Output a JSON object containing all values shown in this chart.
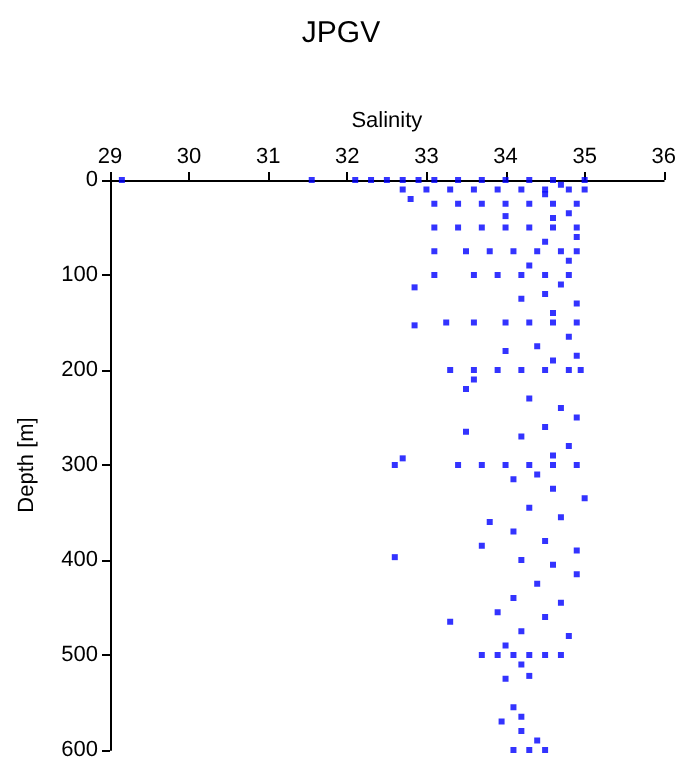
{
  "chart_data": {
    "type": "scatter",
    "title": "JPGV",
    "xlabel": "Salinity",
    "ylabel": "Depth [m]",
    "xlim": [
      29,
      36
    ],
    "xticks": [
      29,
      30,
      31,
      32,
      33,
      34,
      35,
      36
    ],
    "ylim": [
      600,
      0
    ],
    "yticks": [
      0,
      100,
      200,
      300,
      400,
      500,
      600
    ],
    "grid": false,
    "marker": "square",
    "series": [
      {
        "color": "#0000ff",
        "x": [
          29.15,
          31.55,
          32.1,
          32.3,
          32.5,
          32.7,
          32.9,
          33.1,
          33.4,
          33.7,
          34.0,
          34.3,
          34.6,
          35.0,
          32.7,
          33.0,
          33.3,
          33.6,
          33.9,
          34.2,
          34.5,
          34.8,
          35.0,
          33.1,
          33.4,
          33.7,
          34.0,
          34.3,
          34.6,
          34.9,
          33.1,
          33.4,
          33.7,
          34.0,
          34.3,
          34.6,
          34.9,
          33.1,
          33.5,
          33.8,
          34.1,
          34.4,
          34.7,
          34.9,
          33.1,
          33.6,
          33.9,
          34.2,
          34.5,
          34.8,
          33.25,
          33.6,
          34.0,
          34.3,
          34.6,
          34.9,
          33.3,
          33.6,
          33.9,
          34.2,
          34.5,
          34.8,
          34.95,
          33.4,
          33.7,
          34.0,
          34.3,
          34.6,
          34.9,
          33.7,
          33.9,
          34.1,
          34.3,
          34.5,
          34.7,
          34.7,
          34.5,
          34.8,
          34.6,
          34.0,
          34.9,
          34.5,
          34.8,
          34.3,
          34.7,
          34.5,
          34.9,
          34.2,
          34.6,
          34.8,
          34.4,
          34.9,
          34.0,
          34.6,
          33.5,
          33.6,
          34.3,
          34.7,
          34.9,
          34.5,
          34.2,
          34.8,
          33.5,
          34.6,
          34.4,
          34.1,
          34.6,
          35.0,
          34.3,
          34.7,
          33.8,
          34.1,
          34.5,
          34.9,
          33.7,
          34.2,
          34.6,
          34.9,
          34.4,
          34.1,
          34.7,
          33.9,
          34.5,
          34.2,
          34.8,
          34.0,
          34.2,
          34.0,
          34.3,
          34.1,
          34.2,
          33.95,
          34.2,
          34.4,
          34.1,
          34.5,
          34.3,
          32.8,
          32.85,
          32.85,
          32.6,
          32.7,
          32.6,
          33.3
        ],
        "values": [
          0,
          0,
          0,
          0,
          0,
          0,
          0,
          0,
          0,
          0,
          0,
          0,
          0,
          0,
          10,
          10,
          10,
          10,
          10,
          10,
          10,
          10,
          10,
          25,
          25,
          25,
          25,
          25,
          25,
          25,
          50,
          50,
          50,
          50,
          50,
          50,
          50,
          75,
          75,
          75,
          75,
          75,
          75,
          75,
          100,
          100,
          100,
          100,
          100,
          100,
          150,
          150,
          150,
          150,
          150,
          150,
          200,
          200,
          200,
          200,
          200,
          200,
          200,
          300,
          300,
          300,
          300,
          300,
          300,
          500,
          500,
          500,
          500,
          500,
          500,
          5,
          15,
          35,
          40,
          38,
          60,
          65,
          85,
          90,
          110,
          120,
          130,
          125,
          140,
          165,
          175,
          185,
          180,
          190,
          220,
          210,
          230,
          240,
          250,
          260,
          270,
          280,
          265,
          290,
          310,
          315,
          325,
          335,
          345,
          355,
          360,
          370,
          380,
          390,
          385,
          400,
          405,
          415,
          425,
          440,
          445,
          455,
          460,
          475,
          480,
          490,
          510,
          525,
          522,
          555,
          565,
          570,
          580,
          590,
          600,
          600,
          600,
          20,
          113,
          153,
          300,
          293,
          397,
          465
        ]
      }
    ]
  }
}
